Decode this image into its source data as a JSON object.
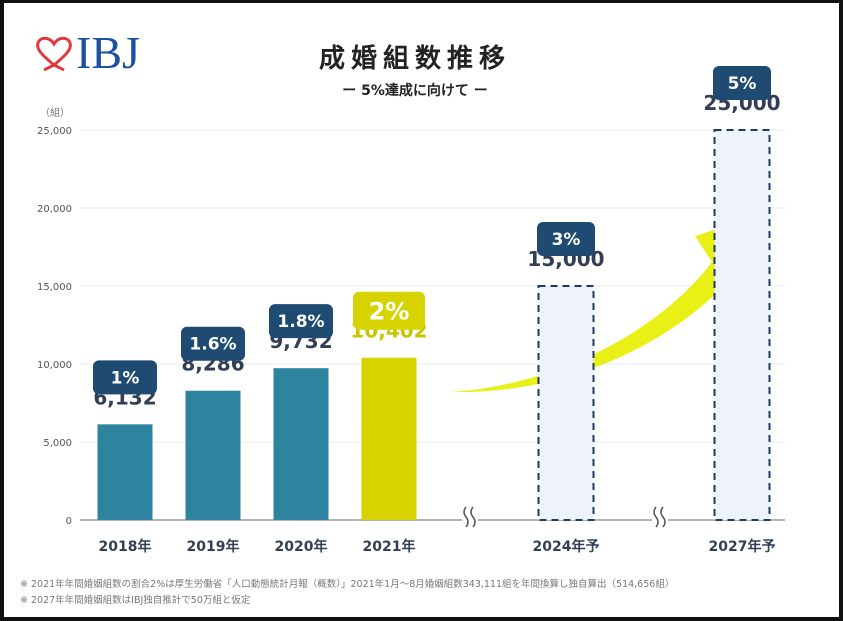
{
  "logo": {
    "text": "IBJ",
    "heart_color": "#e0393e",
    "text_color": "#1d4fa3"
  },
  "title": "成婚組数推移",
  "subtitle": "ー 5%達成に向けて ー",
  "chart_data": {
    "type": "bar",
    "ylabel": "（組）",
    "ylim": [
      0,
      25000
    ],
    "yticks": [
      "0",
      "5,000",
      "10,000",
      "15,000",
      "20,000",
      "25,000"
    ],
    "ytick_values": [
      0,
      5000,
      10000,
      15000,
      20000,
      25000
    ],
    "grid": true,
    "categories": [
      "2018年",
      "2019年",
      "2020年",
      "2021年",
      "2024年予",
      "2027年予"
    ],
    "values": [
      6132,
      8286,
      9732,
      10402,
      15000,
      25000
    ],
    "value_labels": [
      "6,132",
      "8,286",
      "9,732",
      "10,402",
      "15,000",
      "25,000"
    ],
    "share_labels": [
      "1%",
      "1.6%",
      "1.8%",
      "2%",
      "3%",
      "5%"
    ],
    "projected": [
      false,
      false,
      false,
      false,
      true,
      true
    ],
    "axis_breaks": [
      "between 2021年 and 2024年予",
      "between 2024年予 and 2027年予"
    ],
    "colors": {
      "actual": "#2e849e",
      "highlight": "#d6d300",
      "badge": "#1f4a72",
      "projected_fill": "#eef2fa",
      "projected_border": "#1f3a64",
      "arrow": "#e8f015",
      "value_text": "#333e55"
    }
  },
  "notes": [
    "※ 2021年年間婚姻組数の割合2%は厚生労働省「人口動態統計月報（概数）」2021年1月～8月婚姻組数343,111組を年間換算し独自算出（514,656組）",
    "※ 2027年年間婚姻組数はIBJ独自推計で50万組と仮定"
  ]
}
